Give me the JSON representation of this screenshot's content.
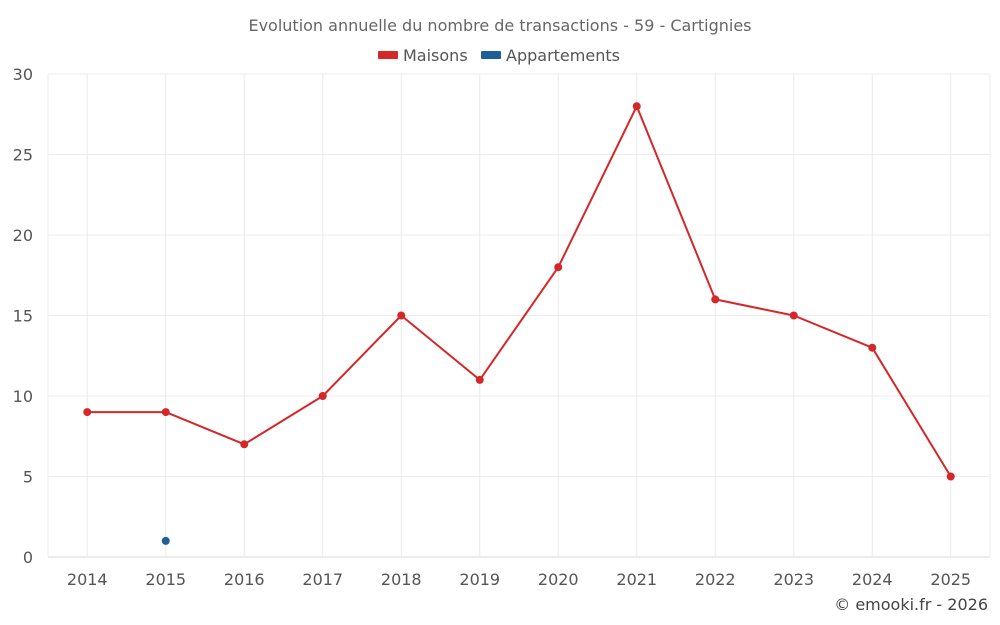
{
  "chart_data": {
    "type": "line",
    "title": "Evolution annuelle du nombre de transactions - 59 - Cartignies",
    "categories": [
      "2014",
      "2015",
      "2016",
      "2017",
      "2018",
      "2019",
      "2020",
      "2021",
      "2022",
      "2023",
      "2024",
      "2025"
    ],
    "series": [
      {
        "name": "Maisons",
        "color": "#d62728",
        "values": [
          9,
          9,
          7,
          10,
          15,
          11,
          18,
          28,
          16,
          15,
          13,
          5
        ]
      },
      {
        "name": "Appartements",
        "color": "#1f5f99",
        "values": [
          null,
          1,
          null,
          null,
          null,
          null,
          null,
          null,
          null,
          null,
          null,
          null
        ]
      }
    ],
    "ylim": [
      0,
      30
    ],
    "yticks": [
      0,
      5,
      10,
      15,
      20,
      25,
      30
    ],
    "xlabel": "",
    "ylabel": "",
    "legend_position": "top-center",
    "grid": true
  },
  "credit": "© emooki.fr - 2026"
}
